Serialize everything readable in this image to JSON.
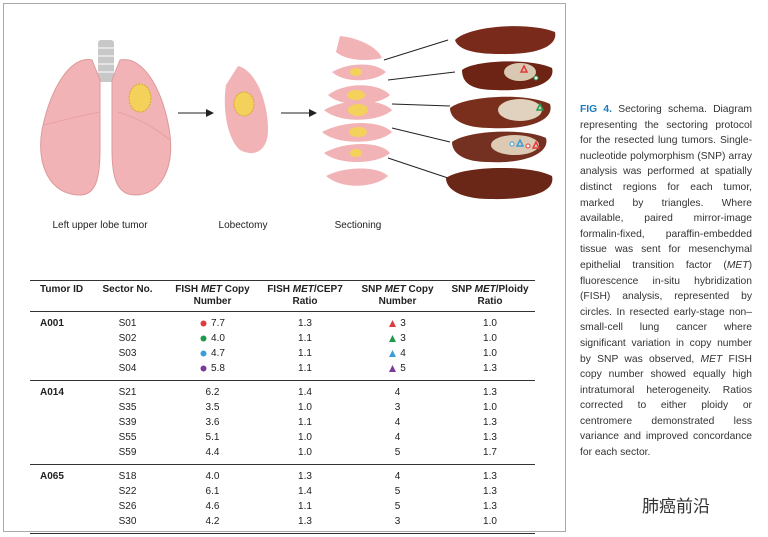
{
  "figure": {
    "labels": [
      "Left upper lobe tumor",
      "Lobectomy",
      "Sectioning"
    ]
  },
  "table": {
    "headers": [
      [
        {
          "text": "Tumor ID"
        }
      ],
      [
        {
          "text": "Sector No."
        }
      ],
      [
        {
          "text": "FISH "
        },
        {
          "text": "MET",
          "italic": true
        },
        {
          "text": " Copy Number"
        }
      ],
      [
        {
          "text": "FISH "
        },
        {
          "text": "MET",
          "italic": true
        },
        {
          "text": "/CEP7 Ratio"
        }
      ],
      [
        {
          "text": "SNP "
        },
        {
          "text": "MET",
          "italic": true
        },
        {
          "text": " Copy Number"
        }
      ],
      [
        {
          "text": "SNP "
        },
        {
          "text": "MET",
          "italic": true
        },
        {
          "text": "/Ploidy Ratio"
        }
      ]
    ],
    "groups": [
      {
        "id": "A001",
        "rows": [
          {
            "cells": [
              "S01",
              "7.7",
              "1.3",
              "3",
              "1.0"
            ],
            "marker_color": "#e23a3a"
          },
          {
            "cells": [
              "S02",
              "4.0",
              "1.1",
              "3",
              "1.0"
            ],
            "marker_color": "#1f9a4c"
          },
          {
            "cells": [
              "S03",
              "4.7",
              "1.1",
              "4",
              "1.0"
            ],
            "marker_color": "#3a9fd8"
          },
          {
            "cells": [
              "S04",
              "5.8",
              "1.1",
              "5",
              "1.3"
            ],
            "marker_color": "#7b3c99"
          }
        ]
      },
      {
        "id": "A014",
        "rows": [
          {
            "cells": [
              "S21",
              "6.2",
              "1.4",
              "4",
              "1.3"
            ]
          },
          {
            "cells": [
              "S35",
              "3.5",
              "1.0",
              "3",
              "1.0"
            ]
          },
          {
            "cells": [
              "S39",
              "3.6",
              "1.1",
              "4",
              "1.3"
            ]
          },
          {
            "cells": [
              "S55",
              "5.1",
              "1.0",
              "4",
              "1.3"
            ]
          },
          {
            "cells": [
              "S59",
              "4.4",
              "1.0",
              "5",
              "1.7"
            ]
          }
        ]
      },
      {
        "id": "A065",
        "rows": [
          {
            "cells": [
              "S18",
              "4.0",
              "1.3",
              "4",
              "1.3"
            ]
          },
          {
            "cells": [
              "S22",
              "6.1",
              "1.4",
              "5",
              "1.3"
            ]
          },
          {
            "cells": [
              "S26",
              "4.6",
              "1.1",
              "5",
              "1.3"
            ]
          },
          {
            "cells": [
              "S30",
              "4.2",
              "1.3",
              "3",
              "1.0"
            ]
          }
        ]
      }
    ]
  },
  "caption": {
    "label": "FIG 4.",
    "label_color": "#1a7bbf",
    "segments": [
      {
        "text": " Sectoring schema. Diagram representing the sectoring protocol for the resected lung tumors. Single-nucleotide polymorphism (SNP) array analysis was performed at spatially distinct regions for each tumor, marked by triangles. Where available, paired mirror-image formalin-fixed, paraffin-embedded tissue was sent for mesenchymal epithelial transition factor ("
      },
      {
        "text": "MET",
        "italic": true
      },
      {
        "text": ") fluorescence in-situ hybridization (FISH) analysis, represented by circles. In resected early-stage non–small-cell lung cancer where significant variation in copy number by SNP was observed, "
      },
      {
        "text": "MET",
        "italic": true
      },
      {
        "text": " FISH copy number showed equally high intratumoral heterogeneity. Ratios corrected to either ploidy or centromere demonstrated less variance and improved concordance for each sector."
      }
    ]
  },
  "watermark": "肺癌前沿"
}
